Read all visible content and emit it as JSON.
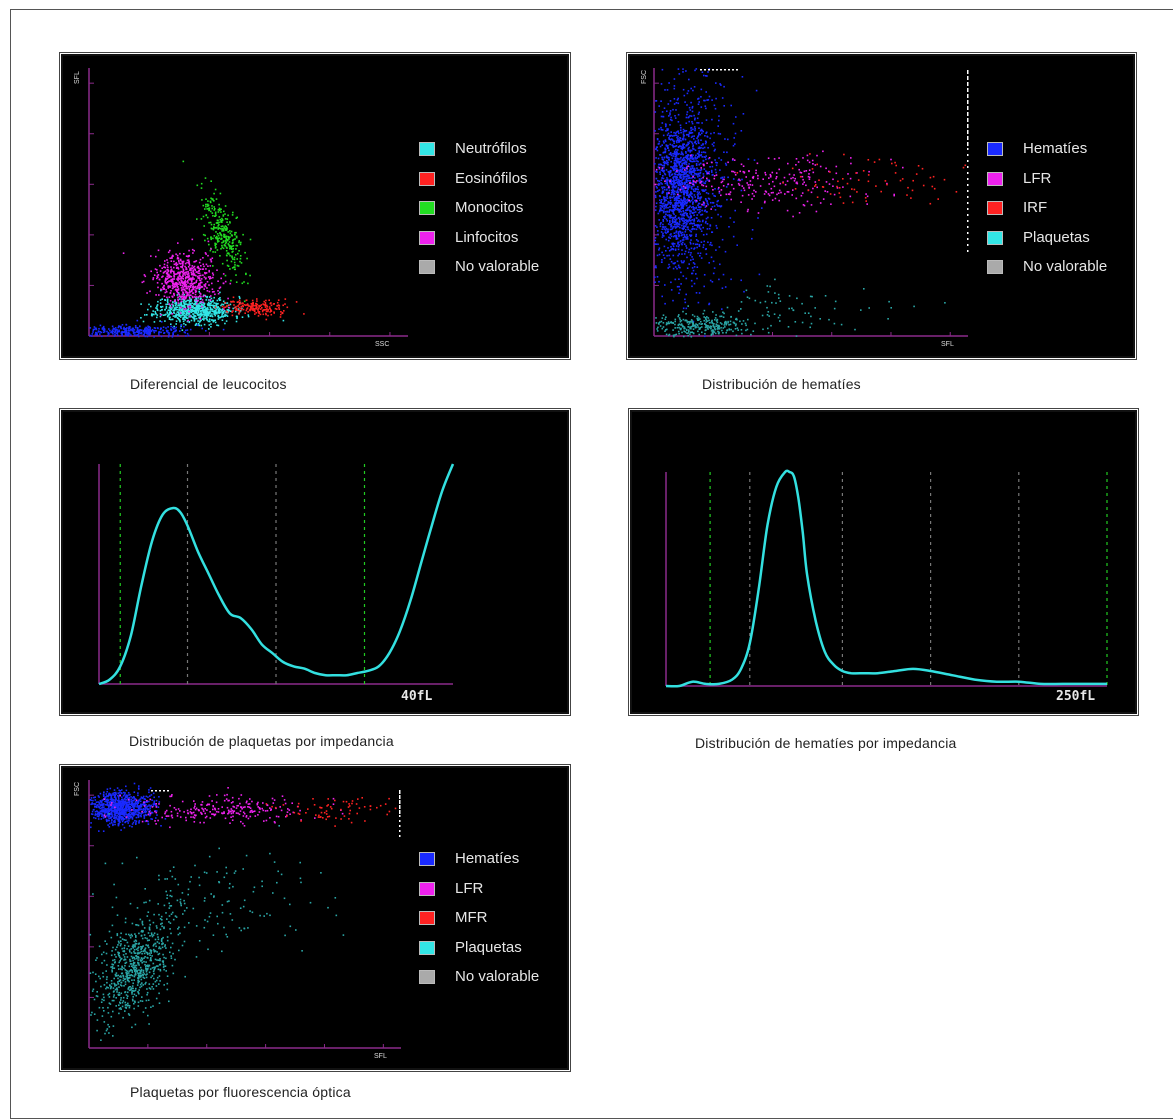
{
  "captions": {
    "wdf": "Diferencial de leucocitos",
    "ret": "Distribución de hematíes",
    "plt_i": "Distribución de plaquetas por impedancia",
    "rbc_i": "Distribución de hematíes por impedancia",
    "plt_o": "Plaquetas por fluorescencia óptica"
  },
  "colors": {
    "panel_bg": "#000000",
    "axis": "#8a2a8a",
    "curve": "#33e0e0",
    "green_marker": "#22cc22",
    "gray_marker": "#777777",
    "cyan": "#33e6e6",
    "red": "#ff2222",
    "green": "#22dd22",
    "magenta": "#ee22ee",
    "blue": "#1a2aff",
    "gray": "#aaaaaa",
    "teal": "#2aa6a6"
  },
  "chart_data": [
    {
      "id": "wdf",
      "type": "scatter",
      "xlabel": "SSC",
      "ylabel": "SFL",
      "legend_position": "right",
      "legend": [
        {
          "name": "Neutrófilos",
          "color": "#33e6e6"
        },
        {
          "name": "Eosinófilos",
          "color": "#ff2222"
        },
        {
          "name": "Monocitos",
          "color": "#22dd22"
        },
        {
          "name": "Linfocitos",
          "color": "#ee22ee"
        },
        {
          "name": "No valorable",
          "color": "#aaaaaa"
        }
      ],
      "xlim": [
        0,
        100
      ],
      "ylim": [
        0,
        100
      ],
      "clusters": [
        {
          "name": "Neutrófilos",
          "color": "#33e6e6",
          "cx": 33,
          "cy": 10,
          "sx": 6,
          "sy": 2.5,
          "n": 700,
          "angle": 0
        },
        {
          "name": "Eosinófilos",
          "color": "#ff2222",
          "cx": 52,
          "cy": 11,
          "sx": 5,
          "sy": 1.5,
          "n": 180,
          "angle": 0
        },
        {
          "name": "Monocitos",
          "color": "#22dd22",
          "cx": 42,
          "cy": 38,
          "sx": 2.5,
          "sy": 8,
          "n": 300,
          "angle": 0.3
        },
        {
          "name": "Linfocitos",
          "color": "#ee22ee",
          "cx": 30,
          "cy": 21,
          "sx": 4.5,
          "sy": 5,
          "n": 600,
          "angle": 0.4
        },
        {
          "name": "No valorable",
          "color": "#1a2aff",
          "cx": 13,
          "cy": 2,
          "sx": 9,
          "sy": 1.2,
          "n": 350,
          "angle": 0
        }
      ]
    },
    {
      "id": "ret",
      "type": "scatter",
      "xlabel": "SFL",
      "ylabel": "FSC",
      "legend_position": "right",
      "legend": [
        {
          "name": "Hematíes",
          "color": "#1a2aff"
        },
        {
          "name": "LFR",
          "color": "#ee22ee"
        },
        {
          "name": "IRF",
          "color": "#ff2222"
        },
        {
          "name": "Plaquetas",
          "color": "#33e6e6"
        },
        {
          "name": "No valorable",
          "color": "#aaaaaa"
        }
      ],
      "xlim": [
        0,
        100
      ],
      "ylim": [
        0,
        100
      ],
      "clusters": [
        {
          "name": "Hematíes",
          "color": "#1a2aff",
          "cx": 8,
          "cy": 55,
          "sx": 4.5,
          "sy": 14,
          "n": 1400,
          "angle": 0
        },
        {
          "name": "Hematíes (disperso)",
          "color": "#1a2aff",
          "cx": 12,
          "cy": 60,
          "sx": 8,
          "sy": 25,
          "n": 500,
          "angle": 0
        },
        {
          "name": "LFR",
          "color": "#ee22ee",
          "cx": 35,
          "cy": 58,
          "sx": 16,
          "sy": 5,
          "n": 250,
          "angle": 0
        },
        {
          "name": "IRF",
          "color": "#ff2222",
          "cx": 68,
          "cy": 58,
          "sx": 14,
          "sy": 5,
          "n": 70,
          "angle": 0
        },
        {
          "name": "Plaquetas",
          "color": "#2aa6a6",
          "cx": 14,
          "cy": 4,
          "sx": 8,
          "sy": 2,
          "n": 300,
          "angle": 0
        },
        {
          "name": "Plaquetas (disperso)",
          "color": "#2aa6a6",
          "cx": 40,
          "cy": 10,
          "sx": 18,
          "sy": 5,
          "n": 80,
          "angle": 0
        }
      ]
    },
    {
      "id": "plt_i",
      "type": "line",
      "xlabel": "40fL",
      "ylabel": "",
      "xlim": [
        0,
        100
      ],
      "ylim": [
        0,
        100
      ],
      "x": [
        0,
        3,
        6,
        9,
        12,
        15,
        18,
        21,
        23,
        25,
        28,
        31,
        34,
        37,
        40,
        43,
        46,
        49,
        52,
        55,
        58,
        61,
        64,
        67,
        70,
        73,
        76,
        79,
        82,
        85,
        88,
        91,
        94,
        97,
        100
      ],
      "y": [
        0,
        2,
        8,
        22,
        45,
        65,
        77,
        80,
        78,
        72,
        60,
        50,
        40,
        32,
        30,
        25,
        18,
        14,
        10,
        8,
        7,
        5,
        4,
        4,
        4,
        5,
        6,
        8,
        14,
        24,
        38,
        55,
        72,
        88,
        100
      ],
      "vlines": [
        {
          "x": 6,
          "color": "green"
        },
        {
          "x": 25,
          "color": "gray"
        },
        {
          "x": 50,
          "color": "gray"
        },
        {
          "x": 75,
          "color": "green"
        }
      ]
    },
    {
      "id": "rbc_i",
      "type": "line",
      "xlabel": "250fL",
      "ylabel": "",
      "xlim": [
        0,
        100
      ],
      "ylim": [
        0,
        100
      ],
      "x": [
        0,
        3,
        6,
        9,
        12,
        15,
        17,
        19,
        21,
        23,
        25,
        27,
        28,
        29,
        30,
        31,
        32,
        34,
        36,
        38,
        40,
        42,
        45,
        48,
        52,
        56,
        60,
        65,
        70,
        75,
        80,
        85,
        90,
        95,
        100
      ],
      "y": [
        0,
        0,
        2,
        1,
        1,
        3,
        8,
        20,
        45,
        75,
        93,
        100,
        100,
        98,
        88,
        72,
        52,
        30,
        16,
        10,
        7,
        6,
        6,
        6,
        7,
        8,
        7,
        5,
        3,
        2,
        2,
        1,
        1,
        1,
        1
      ],
      "vlines": [
        {
          "x": 10,
          "color": "green"
        },
        {
          "x": 19,
          "color": "gray"
        },
        {
          "x": 40,
          "color": "gray"
        },
        {
          "x": 60,
          "color": "gray"
        },
        {
          "x": 80,
          "color": "gray"
        },
        {
          "x": 100,
          "color": "green"
        }
      ]
    },
    {
      "id": "plt_o",
      "type": "scatter",
      "xlabel": "SFL",
      "ylabel": "FSC",
      "legend_position": "right",
      "legend": [
        {
          "name": "Hematíes",
          "color": "#1a2aff"
        },
        {
          "name": "LFR",
          "color": "#ee22ee"
        },
        {
          "name": "MFR",
          "color": "#ff2222"
        },
        {
          "name": "Plaquetas",
          "color": "#33e6e6"
        },
        {
          "name": "No valorable",
          "color": "#aaaaaa"
        }
      ],
      "xlim": [
        0,
        100
      ],
      "ylim": [
        0,
        100
      ],
      "clusters": [
        {
          "name": "Hematíes",
          "color": "#1a2aff",
          "cx": 10,
          "cy": 90,
          "sx": 5,
          "sy": 3,
          "n": 900,
          "angle": 0
        },
        {
          "name": "LFR",
          "color": "#ee22ee",
          "cx": 40,
          "cy": 89,
          "sx": 15,
          "sy": 2.5,
          "n": 250,
          "angle": 0
        },
        {
          "name": "MFR",
          "color": "#ff2222",
          "cx": 78,
          "cy": 89,
          "sx": 10,
          "sy": 2.5,
          "n": 70,
          "angle": 0
        },
        {
          "name": "Plaquetas",
          "color": "#2aa6a6",
          "cx": 14,
          "cy": 30,
          "sx": 5,
          "sy": 10,
          "n": 700,
          "angle": -0.4
        },
        {
          "name": "Plaquetas (disperso)",
          "color": "#2aa6a6",
          "cx": 35,
          "cy": 55,
          "sx": 18,
          "sy": 10,
          "n": 150,
          "angle": 0
        }
      ]
    }
  ]
}
